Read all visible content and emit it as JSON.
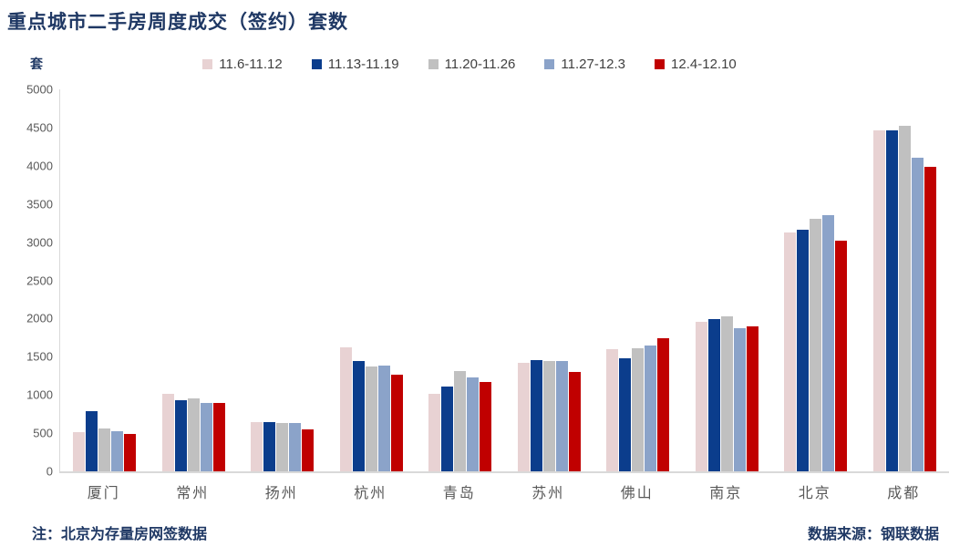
{
  "title": "重点城市二手房周度成交（签约）套数",
  "unit_label": "套",
  "footnote_left": "注：北京为存量房网签数据",
  "footnote_right": "数据来源：钢联数据",
  "colors": {
    "title_text": "#1f3864",
    "axis_text": "#595959",
    "legend_text": "#404040",
    "axis_line": "#d9d9d9",
    "background": "#ffffff"
  },
  "chart_data": {
    "type": "bar",
    "title": "重点城市二手房周度成交（签约）套数",
    "xlabel": "",
    "ylabel": "套",
    "ylim": [
      0,
      5000
    ],
    "ytick_step": 500,
    "grid": false,
    "legend_position": "top-center",
    "categories": [
      "厦门",
      "常州",
      "扬州",
      "杭州",
      "青岛",
      "苏州",
      "佛山",
      "南京",
      "北京",
      "成都"
    ],
    "series": [
      {
        "name": "11.6-11.12",
        "color": "#e8d2d3",
        "values": [
          510,
          1020,
          640,
          1620,
          1010,
          1420,
          1600,
          1960,
          3130,
          4460
        ]
      },
      {
        "name": "11.13-11.19",
        "color": "#0b3d8c",
        "values": [
          790,
          930,
          645,
          1440,
          1110,
          1460,
          1480,
          1990,
          3160,
          4460
        ]
      },
      {
        "name": "11.20-11.26",
        "color": "#c0c0c0",
        "values": [
          560,
          960,
          630,
          1370,
          1310,
          1440,
          1610,
          2030,
          3310,
          4520
        ]
      },
      {
        "name": "11.27-12.3",
        "color": "#8ba3c9",
        "values": [
          520,
          900,
          635,
          1385,
          1230,
          1440,
          1650,
          1870,
          3350,
          4110
        ]
      },
      {
        "name": "12.4-12.10",
        "color": "#c00000",
        "values": [
          490,
          890,
          550,
          1270,
          1170,
          1300,
          1740,
          1900,
          3020,
          3990
        ]
      }
    ]
  }
}
